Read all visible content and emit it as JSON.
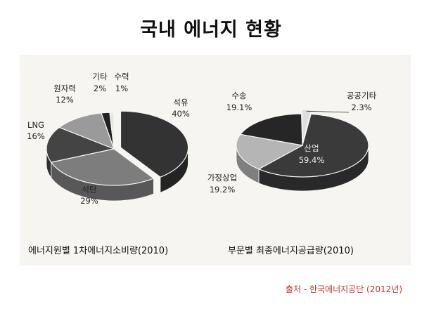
{
  "page": {
    "title": "국내 에너지 현황",
    "source": "출처 - 한국에너지공단 (2012년)"
  },
  "chart_data": [
    {
      "type": "pie",
      "title": "에너지원별 1차에너지소비량(2010)",
      "slices": [
        {
          "label": "석유",
          "value": 40,
          "display": "40%",
          "color": "#333333",
          "exploded": true
        },
        {
          "label": "석탄",
          "value": 29,
          "display": "29%",
          "color": "#7d7d7d",
          "exploded": false
        },
        {
          "label": "LNG",
          "value": 16,
          "display": "16%",
          "color": "#444444",
          "exploded": false
        },
        {
          "label": "원자력",
          "value": 12,
          "display": "12%",
          "color": "#9a9a9a",
          "exploded": false
        },
        {
          "label": "기타",
          "value": 2,
          "display": "2%",
          "color": "#222222",
          "exploded": false
        },
        {
          "label": "수력",
          "value": 1,
          "display": "1%",
          "color": "#e6e6e6",
          "exploded": false
        }
      ]
    },
    {
      "type": "pie",
      "title": "부문별 최종에너지공급량(2010)",
      "slices": [
        {
          "label": "산업",
          "value": 59.4,
          "display": "59.4%",
          "color": "#3a3a3a",
          "exploded": false
        },
        {
          "label": "가정상업",
          "value": 19.2,
          "display": "19.2%",
          "color": "#b5b5b5",
          "exploded": false
        },
        {
          "label": "수송",
          "value": 19.1,
          "display": "19.1%",
          "color": "#262626",
          "exploded": false
        },
        {
          "label": "공공기타",
          "value": 2.3,
          "display": "2.3%",
          "color": "#dedede",
          "exploded": true
        }
      ]
    }
  ]
}
